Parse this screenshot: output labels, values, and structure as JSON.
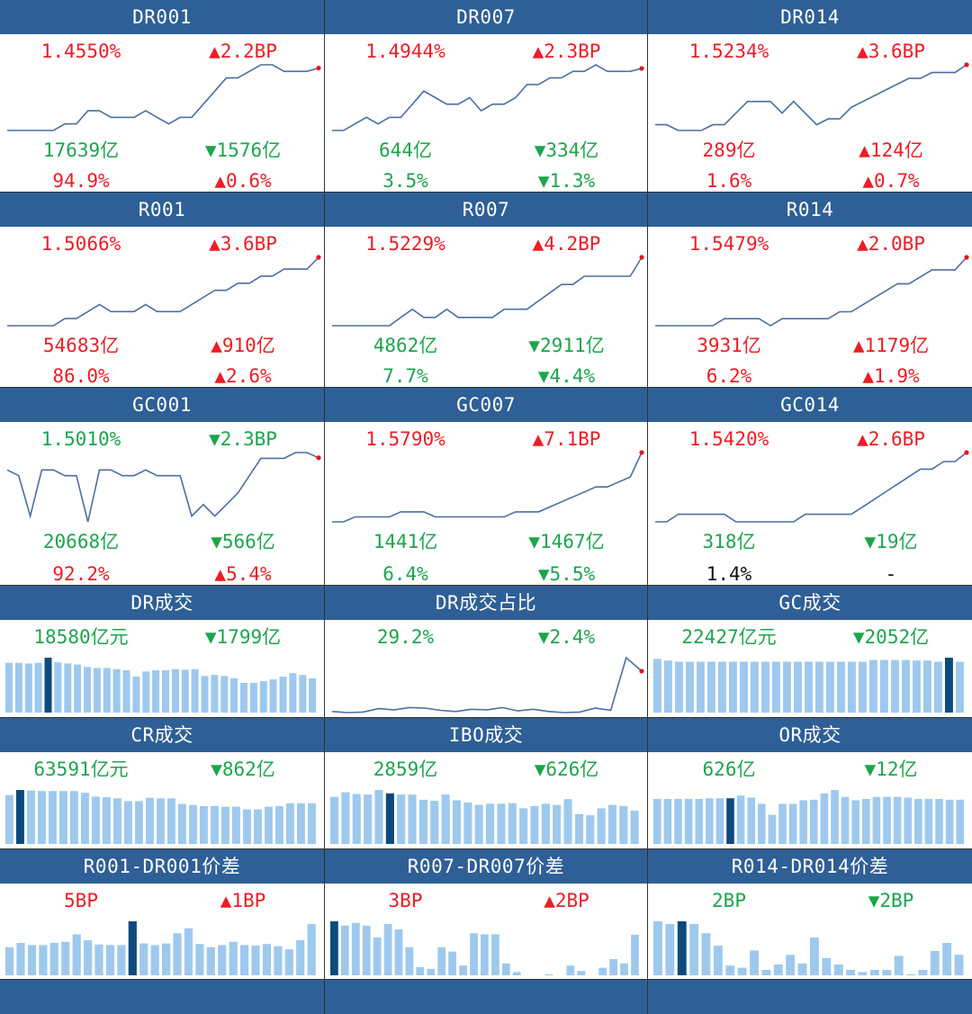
{
  "colors": {
    "header_bg": "#2e5f96",
    "up": "#ee1c25",
    "down": "#1aa64b",
    "neutral": "#111111",
    "line": "#4a6fa5",
    "bar": "#9ec9ee",
    "bar_highlight": "#0d4a7c",
    "last_point": "#e8141c"
  },
  "chart_data": [
    {
      "title": "DR001",
      "type": "line",
      "rows": [
        {
          "l": "1.4550%",
          "lc": "up",
          "r": "▲2.2BP",
          "rc": "up"
        },
        {
          "l": "17639亿",
          "lc": "down",
          "r": "▼1576亿",
          "rc": "down"
        },
        {
          "l": "94.9%",
          "lc": "up",
          "r": "▲0.6%",
          "rc": "up"
        }
      ],
      "values": [
        1.36,
        1.36,
        1.36,
        1.36,
        1.36,
        1.37,
        1.37,
        1.39,
        1.39,
        1.38,
        1.38,
        1.38,
        1.39,
        1.38,
        1.37,
        1.38,
        1.38,
        1.4,
        1.42,
        1.44,
        1.44,
        1.45,
        1.46,
        1.46,
        1.45,
        1.45,
        1.45,
        1.455
      ]
    },
    {
      "title": "DR007",
      "type": "line",
      "rows": [
        {
          "l": "1.4944%",
          "lc": "up",
          "r": "▲2.3BP",
          "rc": "up"
        },
        {
          "l": "644亿",
          "lc": "down",
          "r": "▼334亿",
          "rc": "down"
        },
        {
          "l": "3.5%",
          "lc": "down",
          "r": "▼1.3%",
          "rc": "down"
        }
      ],
      "values": [
        1.4,
        1.4,
        1.41,
        1.42,
        1.41,
        1.42,
        1.42,
        1.44,
        1.46,
        1.45,
        1.44,
        1.44,
        1.45,
        1.43,
        1.44,
        1.44,
        1.45,
        1.47,
        1.47,
        1.48,
        1.48,
        1.49,
        1.49,
        1.5,
        1.49,
        1.49,
        1.49,
        1.4944
      ]
    },
    {
      "title": "DR014",
      "type": "line",
      "rows": [
        {
          "l": "1.5234%",
          "lc": "up",
          "r": "▲3.6BP",
          "rc": "up"
        },
        {
          "l": "289亿",
          "lc": "up",
          "r": "▲124亿",
          "rc": "up"
        },
        {
          "l": "1.6%",
          "lc": "up",
          "r": "▲0.7%",
          "rc": "up"
        }
      ],
      "values": [
        1.42,
        1.42,
        1.41,
        1.41,
        1.41,
        1.42,
        1.42,
        1.44,
        1.46,
        1.46,
        1.46,
        1.44,
        1.46,
        1.44,
        1.42,
        1.43,
        1.43,
        1.45,
        1.46,
        1.47,
        1.48,
        1.49,
        1.5,
        1.5,
        1.51,
        1.51,
        1.51,
        1.5234
      ]
    },
    {
      "title": "R001",
      "type": "line",
      "rows": [
        {
          "l": "1.5066%",
          "lc": "up",
          "r": "▲3.6BP",
          "rc": "up"
        },
        {
          "l": "54683亿",
          "lc": "up",
          "r": "▲910亿",
          "rc": "up"
        },
        {
          "l": "86.0%",
          "lc": "up",
          "r": "▲2.6%",
          "rc": "up"
        }
      ],
      "values": [
        1.41,
        1.41,
        1.41,
        1.41,
        1.41,
        1.42,
        1.42,
        1.43,
        1.44,
        1.43,
        1.43,
        1.43,
        1.44,
        1.43,
        1.43,
        1.43,
        1.44,
        1.45,
        1.46,
        1.46,
        1.47,
        1.47,
        1.48,
        1.48,
        1.49,
        1.49,
        1.49,
        1.5066
      ]
    },
    {
      "title": "R007",
      "type": "line",
      "rows": [
        {
          "l": "1.5229%",
          "lc": "up",
          "r": "▲4.2BP",
          "rc": "up"
        },
        {
          "l": "4862亿",
          "lc": "down",
          "r": "▼2911亿",
          "rc": "down"
        },
        {
          "l": "7.7%",
          "lc": "down",
          "r": "▼4.4%",
          "rc": "down"
        }
      ],
      "values": [
        1.44,
        1.44,
        1.44,
        1.44,
        1.44,
        1.44,
        1.45,
        1.46,
        1.45,
        1.45,
        1.46,
        1.45,
        1.45,
        1.45,
        1.45,
        1.46,
        1.46,
        1.46,
        1.47,
        1.48,
        1.49,
        1.49,
        1.5,
        1.5,
        1.5,
        1.5,
        1.5,
        1.5229
      ]
    },
    {
      "title": "R014",
      "type": "line",
      "rows": [
        {
          "l": "1.5479%",
          "lc": "up",
          "r": "▲2.0BP",
          "rc": "up"
        },
        {
          "l": "3931亿",
          "lc": "up",
          "r": "▲1179亿",
          "rc": "up"
        },
        {
          "l": "6.2%",
          "lc": "up",
          "r": "▲1.9%",
          "rc": "up"
        }
      ],
      "values": [
        1.45,
        1.45,
        1.45,
        1.45,
        1.45,
        1.45,
        1.46,
        1.46,
        1.46,
        1.46,
        1.45,
        1.46,
        1.46,
        1.46,
        1.46,
        1.46,
        1.47,
        1.47,
        1.48,
        1.49,
        1.5,
        1.51,
        1.51,
        1.52,
        1.53,
        1.53,
        1.53,
        1.5479
      ]
    },
    {
      "title": "GC001",
      "type": "line",
      "rows": [
        {
          "l": "1.5010%",
          "lc": "down",
          "r": "▼2.3BP",
          "rc": "down"
        },
        {
          "l": "20668亿",
          "lc": "down",
          "r": "▼566亿",
          "rc": "down"
        },
        {
          "l": "92.2%",
          "lc": "up",
          "r": "▲5.4%",
          "rc": "up"
        }
      ],
      "values": [
        1.48,
        1.47,
        1.4,
        1.48,
        1.48,
        1.47,
        1.47,
        1.39,
        1.48,
        1.48,
        1.47,
        1.47,
        1.48,
        1.47,
        1.47,
        1.47,
        1.4,
        1.42,
        1.4,
        1.42,
        1.44,
        1.47,
        1.5,
        1.5,
        1.5,
        1.51,
        1.51,
        1.501
      ]
    },
    {
      "title": "GC007",
      "type": "line",
      "rows": [
        {
          "l": "1.5790%",
          "lc": "up",
          "r": "▲7.1BP",
          "rc": "up"
        },
        {
          "l": "1441亿",
          "lc": "down",
          "r": "▼1467亿",
          "rc": "down"
        },
        {
          "l": "6.4%",
          "lc": "down",
          "r": "▼5.5%",
          "rc": "down"
        }
      ],
      "values": [
        1.44,
        1.44,
        1.45,
        1.45,
        1.45,
        1.45,
        1.46,
        1.46,
        1.46,
        1.45,
        1.45,
        1.45,
        1.45,
        1.45,
        1.45,
        1.45,
        1.46,
        1.46,
        1.46,
        1.47,
        1.48,
        1.49,
        1.5,
        1.51,
        1.51,
        1.52,
        1.53,
        1.579
      ]
    },
    {
      "title": "GC014",
      "type": "line",
      "rows": [
        {
          "l": "1.5420%",
          "lc": "up",
          "r": "▲2.6BP",
          "rc": "up"
        },
        {
          "l": "318亿",
          "lc": "down",
          "r": "▼19亿",
          "rc": "down"
        },
        {
          "l": "1.4%",
          "lc": "neutral",
          "r": "-",
          "rc": "neutral"
        }
      ],
      "values": [
        1.45,
        1.45,
        1.46,
        1.46,
        1.46,
        1.46,
        1.46,
        1.45,
        1.45,
        1.45,
        1.45,
        1.45,
        1.45,
        1.46,
        1.46,
        1.46,
        1.46,
        1.46,
        1.47,
        1.48,
        1.49,
        1.5,
        1.51,
        1.52,
        1.52,
        1.53,
        1.53,
        1.542
      ]
    },
    {
      "title": "DR成交",
      "type": "bar",
      "rows": [
        {
          "l": "18580亿元",
          "lc": "down",
          "r": "▼1799亿",
          "rc": "down"
        }
      ],
      "values": [
        0.87,
        0.87,
        0.86,
        0.87,
        0.96,
        0.88,
        0.86,
        0.84,
        0.8,
        0.78,
        0.78,
        0.76,
        0.74,
        0.63,
        0.72,
        0.74,
        0.74,
        0.76,
        0.75,
        0.76,
        0.64,
        0.66,
        0.64,
        0.6,
        0.52,
        0.52,
        0.55,
        0.58,
        0.63,
        0.69,
        0.66,
        0.6
      ],
      "highlight": 4
    },
    {
      "title": "DR成交占比",
      "type": "line",
      "rows": [
        {
          "l": "29.2%",
          "lc": "down",
          "r": "▼2.4%",
          "rc": "down"
        }
      ],
      "values": [
        22.0,
        21.8,
        21.9,
        22.5,
        22.3,
        22.7,
        22.6,
        22.2,
        22.0,
        22.4,
        22.3,
        22.7,
        22.1,
        22.4,
        22.0,
        21.8,
        21.9,
        22.6,
        22.2,
        31.6,
        29.2
      ],
      "highlight": -1
    },
    {
      "title": "GC成交",
      "type": "bar",
      "rows": [
        {
          "l": "22427亿元",
          "lc": "down",
          "r": "▼2052亿",
          "rc": "down"
        }
      ],
      "values": [
        0.93,
        0.9,
        0.88,
        0.88,
        0.88,
        0.88,
        0.88,
        0.88,
        0.88,
        0.88,
        0.88,
        0.88,
        0.88,
        0.88,
        0.88,
        0.88,
        0.88,
        0.88,
        0.88,
        0.88,
        0.91,
        0.91,
        0.91,
        0.91,
        0.9,
        0.9,
        0.88,
        0.95,
        0.88
      ],
      "highlight": 27
    },
    {
      "title": "CR成交",
      "type": "bar",
      "rows": [
        {
          "l": "63591亿元",
          "lc": "down",
          "r": "▼862亿",
          "rc": "down"
        }
      ],
      "values": [
        0.88,
        0.97,
        0.96,
        0.95,
        0.95,
        0.95,
        0.95,
        0.92,
        0.85,
        0.84,
        0.82,
        0.77,
        0.77,
        0.83,
        0.82,
        0.82,
        0.72,
        0.7,
        0.68,
        0.68,
        0.67,
        0.67,
        0.62,
        0.62,
        0.67,
        0.68,
        0.73,
        0.73,
        0.73
      ],
      "highlight": 1
    },
    {
      "title": "IBO成交",
      "type": "bar",
      "rows": [
        {
          "l": "2859亿",
          "lc": "down",
          "r": "▼626亿",
          "rc": "down"
        }
      ],
      "values": [
        0.82,
        0.9,
        0.87,
        0.86,
        0.94,
        0.88,
        0.86,
        0.86,
        0.77,
        0.75,
        0.86,
        0.76,
        0.72,
        0.68,
        0.7,
        0.7,
        0.71,
        0.62,
        0.66,
        0.7,
        0.68,
        0.78,
        0.52,
        0.5,
        0.62,
        0.68,
        0.66,
        0.58
      ],
      "highlight": 5
    },
    {
      "title": "OR成交",
      "type": "bar",
      "rows": [
        {
          "l": "626亿",
          "lc": "down",
          "r": "▼12亿",
          "rc": "down"
        }
      ],
      "values": [
        0.65,
        0.65,
        0.65,
        0.65,
        0.65,
        0.66,
        0.66,
        0.66,
        0.7,
        0.67,
        0.58,
        0.42,
        0.58,
        0.58,
        0.63,
        0.64,
        0.73,
        0.78,
        0.68,
        0.63,
        0.65,
        0.68,
        0.68,
        0.68,
        0.67,
        0.65,
        0.65,
        0.65,
        0.64,
        0.64
      ],
      "highlight": 7
    },
    {
      "title": "R001-DR001价差",
      "type": "bar",
      "rows": [
        {
          "l": "5BP",
          "lc": "up",
          "r": "▲1BP",
          "rc": "up"
        }
      ],
      "values": [
        0.52,
        0.6,
        0.56,
        0.56,
        0.6,
        0.62,
        0.76,
        0.65,
        0.57,
        0.56,
        0.56,
        1.0,
        0.59,
        0.56,
        0.59,
        0.78,
        0.87,
        0.58,
        0.52,
        0.56,
        0.62,
        0.56,
        0.55,
        0.58,
        0.54,
        0.48,
        0.65,
        0.95
      ],
      "highlight": 11
    },
    {
      "title": "R007-DR007价差",
      "type": "bar",
      "rows": [
        {
          "l": "3BP",
          "lc": "up",
          "r": "▲2BP",
          "rc": "up"
        }
      ],
      "values": [
        1.0,
        0.92,
        0.97,
        0.92,
        0.7,
        0.95,
        0.85,
        0.52,
        0.15,
        0.12,
        0.52,
        0.44,
        0.18,
        0.78,
        0.76,
        0.76,
        0.22,
        0.06,
        0,
        0,
        0.02,
        0,
        0.18,
        0.08,
        0,
        0.14,
        0.3,
        0.22,
        0.75
      ],
      "highlight": 0
    },
    {
      "title": "R014-DR014价差",
      "type": "bar",
      "rows": [
        {
          "l": "2BP",
          "lc": "down",
          "r": "▼2BP",
          "rc": "down"
        }
      ],
      "values": [
        1.0,
        0.95,
        1.0,
        0.95,
        0.78,
        0.55,
        0.18,
        0.14,
        0.46,
        0.1,
        0.2,
        0.38,
        0.22,
        0.7,
        0.32,
        0.2,
        0.1,
        0.06,
        0.1,
        0.1,
        0.36,
        0.02,
        0.1,
        0.45,
        0.6,
        0.38
      ],
      "highlight": 2
    }
  ]
}
